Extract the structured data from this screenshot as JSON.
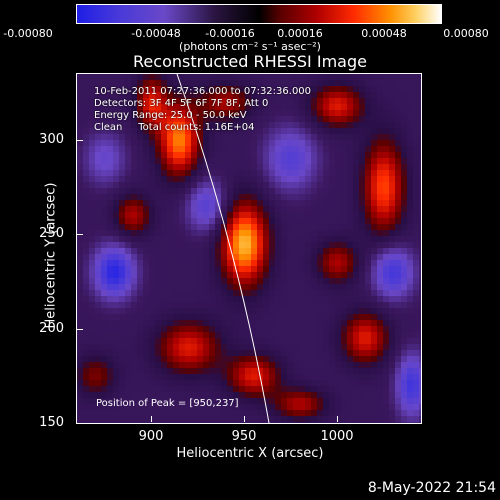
{
  "colorbar": {
    "ticks": [
      "-0.00080",
      "-0.00048",
      "-0.00016",
      "0.00016",
      "0.00048",
      "0.00080"
    ],
    "unit": "(photons cm⁻² s⁻¹ asec⁻²)"
  },
  "chart_data": {
    "type": "heatmap",
    "title": "Reconstructed RHESSI Image",
    "xlabel": "Heliocentric X (arcsec)",
    "ylabel": "Heliocentric Y (arcsec)",
    "xlim": [
      860,
      1045
    ],
    "ylim": [
      150,
      335
    ],
    "x_ticks": [
      "900",
      "950",
      "1000"
    ],
    "y_ticks": [
      "150",
      "200",
      "250",
      "300"
    ],
    "color_range": [
      -0.0008,
      0.0008
    ],
    "peak": {
      "x": 950,
      "y": 237
    },
    "blobs": [
      {
        "x": 950,
        "y": 245,
        "sx": 9,
        "sy": 16,
        "v": 0.0008
      },
      {
        "x": 915,
        "y": 300,
        "sx": 8,
        "sy": 14,
        "v": 0.0007
      },
      {
        "x": 900,
        "y": 320,
        "sx": 6,
        "sy": 10,
        "v": 0.0005
      },
      {
        "x": 1025,
        "y": 275,
        "sx": 8,
        "sy": 18,
        "v": 0.0006
      },
      {
        "x": 1000,
        "y": 318,
        "sx": 10,
        "sy": 8,
        "v": 0.0005
      },
      {
        "x": 940,
        "y": 320,
        "sx": 10,
        "sy": 7,
        "v": 0.0004
      },
      {
        "x": 890,
        "y": 260,
        "sx": 7,
        "sy": 8,
        "v": 0.0004
      },
      {
        "x": 920,
        "y": 190,
        "sx": 12,
        "sy": 10,
        "v": 0.0005
      },
      {
        "x": 955,
        "y": 175,
        "sx": 10,
        "sy": 8,
        "v": 0.0005
      },
      {
        "x": 1015,
        "y": 195,
        "sx": 9,
        "sy": 10,
        "v": 0.0005
      },
      {
        "x": 1000,
        "y": 235,
        "sx": 8,
        "sy": 8,
        "v": 0.0004
      },
      {
        "x": 980,
        "y": 160,
        "sx": 10,
        "sy": 6,
        "v": 0.0004
      },
      {
        "x": 870,
        "y": 175,
        "sx": 8,
        "sy": 8,
        "v": 0.0003
      },
      {
        "x": 880,
        "y": 230,
        "sx": 8,
        "sy": 10,
        "v": -0.0006
      },
      {
        "x": 930,
        "y": 265,
        "sx": 8,
        "sy": 10,
        "v": -0.0004
      },
      {
        "x": 975,
        "y": 290,
        "sx": 10,
        "sy": 12,
        "v": -0.0004
      },
      {
        "x": 1030,
        "y": 230,
        "sx": 8,
        "sy": 10,
        "v": -0.0005
      },
      {
        "x": 1040,
        "y": 170,
        "sx": 6,
        "sy": 12,
        "v": -0.0005
      },
      {
        "x": 875,
        "y": 290,
        "sx": 8,
        "sy": 10,
        "v": -0.0003
      }
    ]
  },
  "info": {
    "time": "10-Feb-2011 07:27:36.000 to 07:32:36.000",
    "detectors": "Detectors: 3F 4F 5F 6F 7F 8F, Att 0",
    "energy": "Energy Range: 25.0 - 50.0 keV",
    "clean": "Clean     Total counts: 1.16E+04",
    "peak": "Position of Peak = [950,237]"
  },
  "datestamp": "8-May-2022 21:54"
}
